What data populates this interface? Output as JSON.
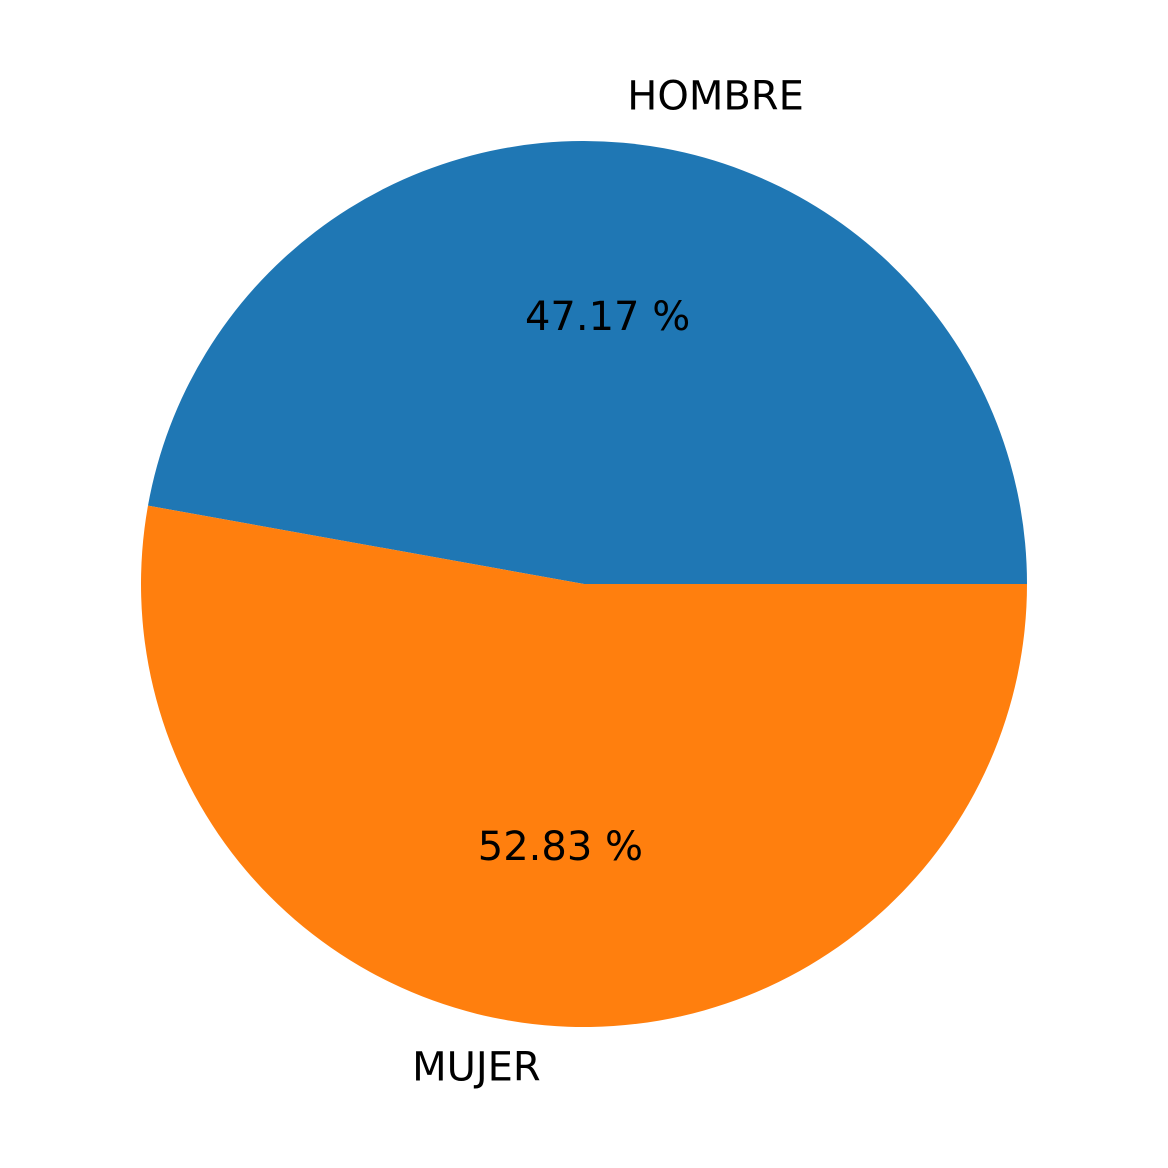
{
  "chart_data": {
    "type": "pie",
    "categories": [
      "HOMBRE",
      "MUJER"
    ],
    "values": [
      47.17,
      52.83
    ],
    "value_labels": [
      "47.17 %",
      "52.83 %"
    ],
    "colors": [
      "#1f77b4",
      "#ff7f0e"
    ],
    "start_angle_deg": 0,
    "direction": "counterclockwise",
    "title": "",
    "legend": "none"
  }
}
